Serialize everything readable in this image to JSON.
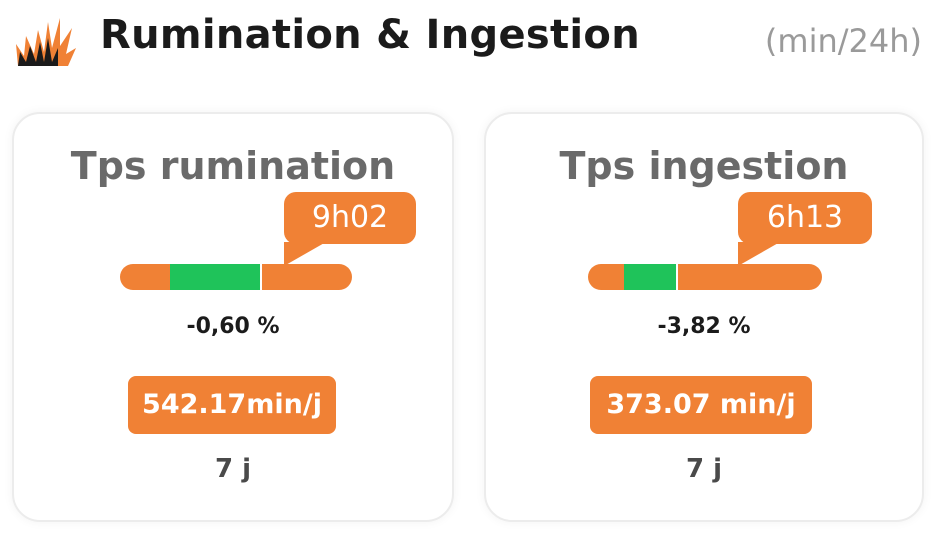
{
  "header": {
    "title": "Rumination & Ingestion",
    "unit": "(min/24h)",
    "logo_icon": "grass-flame-icon",
    "brand_color": "#f08135"
  },
  "cards": [
    {
      "title": "Tps rumination",
      "value_label": "9h02",
      "percent": "-0,60 %",
      "average": "542.17min/j",
      "period": "7 j"
    },
    {
      "title": "Tps ingestion",
      "value_label": "6h13",
      "percent": "-3,82 %",
      "average": "373.07 min/j",
      "period": "7 j"
    }
  ],
  "colors": {
    "accent": "#f08135",
    "good": "#1fc35a",
    "title_gray": "#6a6a6a"
  }
}
